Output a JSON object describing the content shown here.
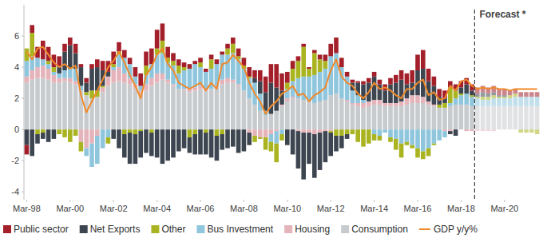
{
  "chart_data": {
    "type": "bar",
    "stacked": true,
    "legend": "bottom",
    "grid": false,
    "categories": [
      "Mar-98",
      null,
      null,
      null,
      null,
      null,
      null,
      null,
      "Mar-00",
      null,
      null,
      null,
      null,
      null,
      null,
      null,
      "Mar-02",
      null,
      null,
      null,
      null,
      null,
      null,
      null,
      "Mar-04",
      null,
      null,
      null,
      null,
      null,
      null,
      null,
      "Mar-06",
      null,
      null,
      null,
      null,
      null,
      null,
      null,
      "Mar-08",
      null,
      null,
      null,
      null,
      null,
      null,
      null,
      "Mar-10",
      null,
      null,
      null,
      null,
      null,
      null,
      null,
      "Mar-12",
      null,
      null,
      null,
      null,
      null,
      null,
      null,
      "Mar-14",
      null,
      null,
      null,
      null,
      null,
      null,
      null,
      "Mar-16",
      null,
      null,
      null,
      null,
      null,
      null,
      null,
      "Mar-18",
      null,
      null,
      null,
      null,
      null,
      null,
      null,
      "Mar-20",
      null,
      null,
      null,
      null,
      null,
      null
    ],
    "ylim": [
      -4.5,
      8
    ],
    "yticks": [
      -4,
      -2,
      0,
      2,
      4,
      6
    ],
    "annotations": [
      {
        "text": "Forecast *",
        "index": 83
      }
    ],
    "series": [
      {
        "name": "Public sector",
        "type": "bar",
        "color": "#a3202b",
        "values": [
          -0.6,
          0.5,
          0.7,
          1.2,
          0.9,
          0.8,
          0.6,
          0.5,
          0.5,
          0.6,
          0.2,
          0.3,
          0.3,
          0.5,
          0.6,
          0.7,
          0.8,
          0.6,
          0.5,
          0.4,
          0.6,
          0.8,
          0.9,
          1.0,
          1.2,
          1.1,
          0.7,
          0.5,
          0.4,
          0.3,
          0.3,
          0.2,
          0.3,
          0.2,
          0.3,
          0.3,
          0.2,
          0.3,
          0.4,
          0.5,
          0.5,
          0.6,
          0.5,
          0.7,
          1.0,
          1.2,
          1.5,
          1.1,
          0.7,
          0.5,
          0.3,
          0.2,
          0.1,
          0.2,
          0.3,
          0.4,
          0.8,
          1.0,
          0.6,
          0.3,
          0.2,
          0.1,
          0.2,
          0.3,
          0.3,
          0.3,
          0.4,
          0.4,
          0.5,
          0.6,
          0.7,
          0.8,
          1.0,
          1.2,
          0.8,
          0.6,
          0.5,
          0.5,
          0.4,
          0.4,
          0.4,
          0.4,
          0.4,
          0.4,
          0.4,
          0.4,
          0.4,
          0.4,
          0.4,
          0.3,
          0.3,
          0.3,
          0.3,
          0.3,
          0.3
        ]
      },
      {
        "name": "Net Exports",
        "type": "bar",
        "color": "#3d4650",
        "values": [
          -1.0,
          -1.7,
          -0.6,
          -0.4,
          -0.8,
          -0.6,
          0.5,
          1.2,
          1.5,
          1.0,
          1.2,
          0.6,
          1.4,
          1.5,
          1.0,
          0.3,
          -0.6,
          -1.2,
          -1.5,
          -2.0,
          -1.9,
          -1.7,
          -1.5,
          -1.5,
          -1.8,
          -2.2,
          -2.0,
          -1.8,
          -1.4,
          -1.2,
          -1.0,
          -1.3,
          -1.6,
          -1.4,
          -1.8,
          -1.6,
          -1.0,
          -1.2,
          -1.1,
          -1.5,
          -1.4,
          -0.8,
          0.3,
          0.8,
          1.2,
          2.0,
          1.5,
          0.9,
          -1.0,
          -1.6,
          -2.4,
          -3.0,
          -2.0,
          -2.8,
          -2.4,
          -2.0,
          -1.5,
          -1.0,
          -0.8,
          -0.3,
          0.5,
          0.8,
          1.0,
          1.2,
          1.5,
          1.0,
          0.8,
          1.2,
          1.3,
          1.4,
          0.9,
          0.8,
          1.6,
          1.8,
          1.3,
          1.2,
          0.5,
          0.3,
          -0.2,
          -0.4,
          0.4,
          0.6,
          0.3,
          0.2,
          0.3,
          0.2,
          0.2,
          0.1,
          0.1,
          0.0,
          0.0,
          0.0,
          0.0,
          0.0,
          0.0
        ]
      },
      {
        "name": "Other",
        "type": "bar",
        "color": "#a9b420",
        "values": [
          0.8,
          1.5,
          -0.3,
          -0.2,
          0.2,
          0.3,
          -0.3,
          -0.5,
          -0.8,
          -0.4,
          -0.6,
          0.2,
          0.5,
          0.4,
          0.1,
          -0.4,
          0.2,
          0.2,
          -0.3,
          -0.2,
          -0.3,
          -0.1,
          0.6,
          -0.2,
          0.4,
          0.8,
          0.3,
          0.3,
          0.5,
          0.2,
          -0.5,
          -0.3,
          0.3,
          -0.2,
          0.6,
          -0.4,
          -0.3,
          0.4,
          0.6,
          0.2,
          0.2,
          0.1,
          -0.4,
          -0.1,
          -0.8,
          -0.6,
          -1.2,
          -0.4,
          0.4,
          0.8,
          1.1,
          1.9,
          0.5,
          1.4,
          0.8,
          0.5,
          -0.1,
          -0.4,
          -0.4,
          -0.3,
          -0.3,
          -0.8,
          -1.1,
          -0.9,
          -0.4,
          -0.3,
          0.0,
          -0.3,
          -0.7,
          -0.9,
          -0.2,
          -0.2,
          -0.6,
          -0.5,
          -0.5,
          -0.1,
          0.2,
          0.3,
          1.0,
          0.5,
          0.1,
          0.0,
          0.1,
          0.1,
          0.2,
          0.2,
          0.2,
          0.1,
          0.1,
          0.2,
          0.2,
          -0.2,
          -0.2,
          -0.2,
          -0.3
        ]
      },
      {
        "name": "Bus Investment",
        "type": "bar",
        "color": "#8fc6dd",
        "values": [
          1.0,
          0.9,
          0.6,
          0.4,
          0.3,
          0.2,
          0.3,
          0.5,
          0.6,
          0.8,
          0.3,
          -0.5,
          -1.5,
          -1.8,
          -1.2,
          -0.5,
          0.2,
          0.8,
          1.0,
          0.9,
          0.5,
          0.3,
          0.6,
          0.9,
          1.2,
          1.3,
          1.1,
          1.2,
          1.0,
          1.2,
          1.3,
          1.5,
          1.2,
          1.1,
          1.3,
          1.4,
          1.6,
          1.5,
          1.7,
          1.6,
          1.4,
          1.3,
          1.4,
          1.1,
          0.3,
          -0.5,
          -0.8,
          -0.3,
          0.6,
          1.0,
          1.3,
          1.5,
          1.6,
          1.8,
          1.9,
          2.0,
          2.5,
          2.6,
          2.0,
          1.5,
          0.8,
          0.5,
          0.2,
          0.0,
          -0.3,
          -0.4,
          -0.2,
          -0.5,
          -0.6,
          -0.9,
          -0.8,
          -1.0,
          -1.2,
          -1.4,
          -1.2,
          -0.9,
          -0.7,
          -0.4,
          0.2,
          0.4,
          0.6,
          0.7,
          0.6,
          0.5,
          0.4,
          0.4,
          0.5,
          0.5,
          0.5,
          0.5,
          0.6,
          0.6,
          0.6,
          0.6,
          0.6
        ]
      },
      {
        "name": "Housing",
        "type": "bar",
        "color": "#e5b3ba",
        "values": [
          0.4,
          0.6,
          0.7,
          0.8,
          0.7,
          0.5,
          0.3,
          0.2,
          0.3,
          0.2,
          -0.8,
          -1.2,
          -0.9,
          -0.4,
          0.3,
          0.6,
          0.8,
          0.9,
          0.6,
          0.4,
          0.3,
          0.2,
          0.4,
          0.5,
          0.6,
          0.4,
          0.2,
          0.1,
          0.0,
          0.1,
          0.2,
          0.2,
          0.2,
          0.1,
          0.0,
          0.1,
          0.3,
          0.3,
          0.2,
          0.1,
          0.0,
          -0.2,
          -0.4,
          -0.5,
          -0.5,
          -0.3,
          -0.1,
          0.1,
          0.2,
          0.1,
          -0.1,
          -0.2,
          -0.2,
          -0.3,
          -0.2,
          -0.1,
          -0.1,
          0.0,
          0.0,
          0.1,
          0.1,
          0.2,
          0.3,
          0.3,
          0.3,
          0.3,
          0.2,
          0.2,
          0.2,
          0.3,
          0.4,
          0.5,
          0.5,
          0.4,
          0.2,
          0.1,
          0.0,
          -0.1,
          -0.1,
          0.0,
          0.0,
          -0.1,
          -0.1,
          -0.1,
          -0.1,
          -0.1,
          -0.1,
          0.0,
          0.0,
          0.0,
          0.0,
          0.0,
          0.0,
          0.0,
          0.0
        ]
      },
      {
        "name": "Consumption",
        "type": "bar",
        "color": "#c8cbce",
        "values": [
          3.0,
          3.2,
          3.3,
          3.3,
          3.2,
          3.0,
          3.0,
          3.1,
          3.0,
          2.9,
          2.5,
          2.2,
          2.0,
          2.1,
          2.4,
          2.8,
          3.0,
          3.1,
          3.0,
          2.9,
          2.6,
          2.3,
          2.5,
          2.8,
          3.0,
          3.2,
          3.0,
          2.8,
          2.6,
          2.5,
          2.4,
          2.5,
          2.6,
          2.5,
          2.6,
          2.7,
          2.9,
          3.0,
          3.0,
          2.8,
          2.5,
          2.0,
          1.6,
          1.2,
          0.9,
          1.0,
          1.2,
          1.5,
          1.8,
          2.0,
          2.0,
          1.9,
          1.8,
          1.7,
          1.8,
          1.9,
          2.2,
          2.3,
          2.0,
          1.8,
          1.6,
          1.5,
          1.4,
          1.5,
          1.6,
          1.6,
          1.5,
          1.5,
          1.5,
          1.5,
          1.6,
          1.7,
          1.7,
          1.7,
          1.6,
          1.5,
          1.4,
          1.4,
          1.5,
          1.6,
          1.6,
          1.6,
          1.5,
          1.5,
          1.5,
          1.5,
          1.5,
          1.5,
          1.5,
          1.5,
          1.5,
          1.5,
          1.5,
          1.5,
          1.5
        ]
      },
      {
        "name": "GDP y/y%",
        "type": "line",
        "color": "#f0892a",
        "values": [
          5.0,
          4.5,
          5.2,
          5.3,
          4.8,
          4.3,
          4.0,
          4.2,
          3.9,
          4.1,
          2.2,
          1.1,
          1.8,
          2.5,
          3.2,
          4.0,
          4.4,
          5.0,
          4.3,
          3.5,
          2.8,
          2.0,
          3.5,
          4.0,
          4.8,
          5.2,
          4.2,
          3.8,
          3.0,
          2.8,
          2.6,
          2.8,
          3.0,
          2.5,
          3.0,
          2.6,
          4.2,
          4.3,
          4.8,
          4.4,
          4.0,
          3.0,
          2.3,
          1.8,
          1.0,
          1.5,
          1.8,
          2.3,
          2.5,
          2.8,
          2.2,
          2.3,
          1.8,
          2.2,
          2.4,
          2.7,
          3.8,
          4.5,
          3.4,
          3.0,
          2.8,
          2.3,
          2.0,
          2.4,
          3.0,
          2.6,
          2.7,
          2.5,
          2.2,
          2.0,
          2.6,
          2.6,
          3.0,
          3.2,
          2.2,
          2.4,
          1.9,
          2.0,
          2.8,
          2.5,
          3.1,
          3.2,
          2.8,
          2.6,
          2.7,
          2.6,
          2.7,
          2.6,
          2.6,
          2.5,
          2.6,
          2.6,
          2.6,
          2.6,
          2.6
        ]
      }
    ]
  }
}
